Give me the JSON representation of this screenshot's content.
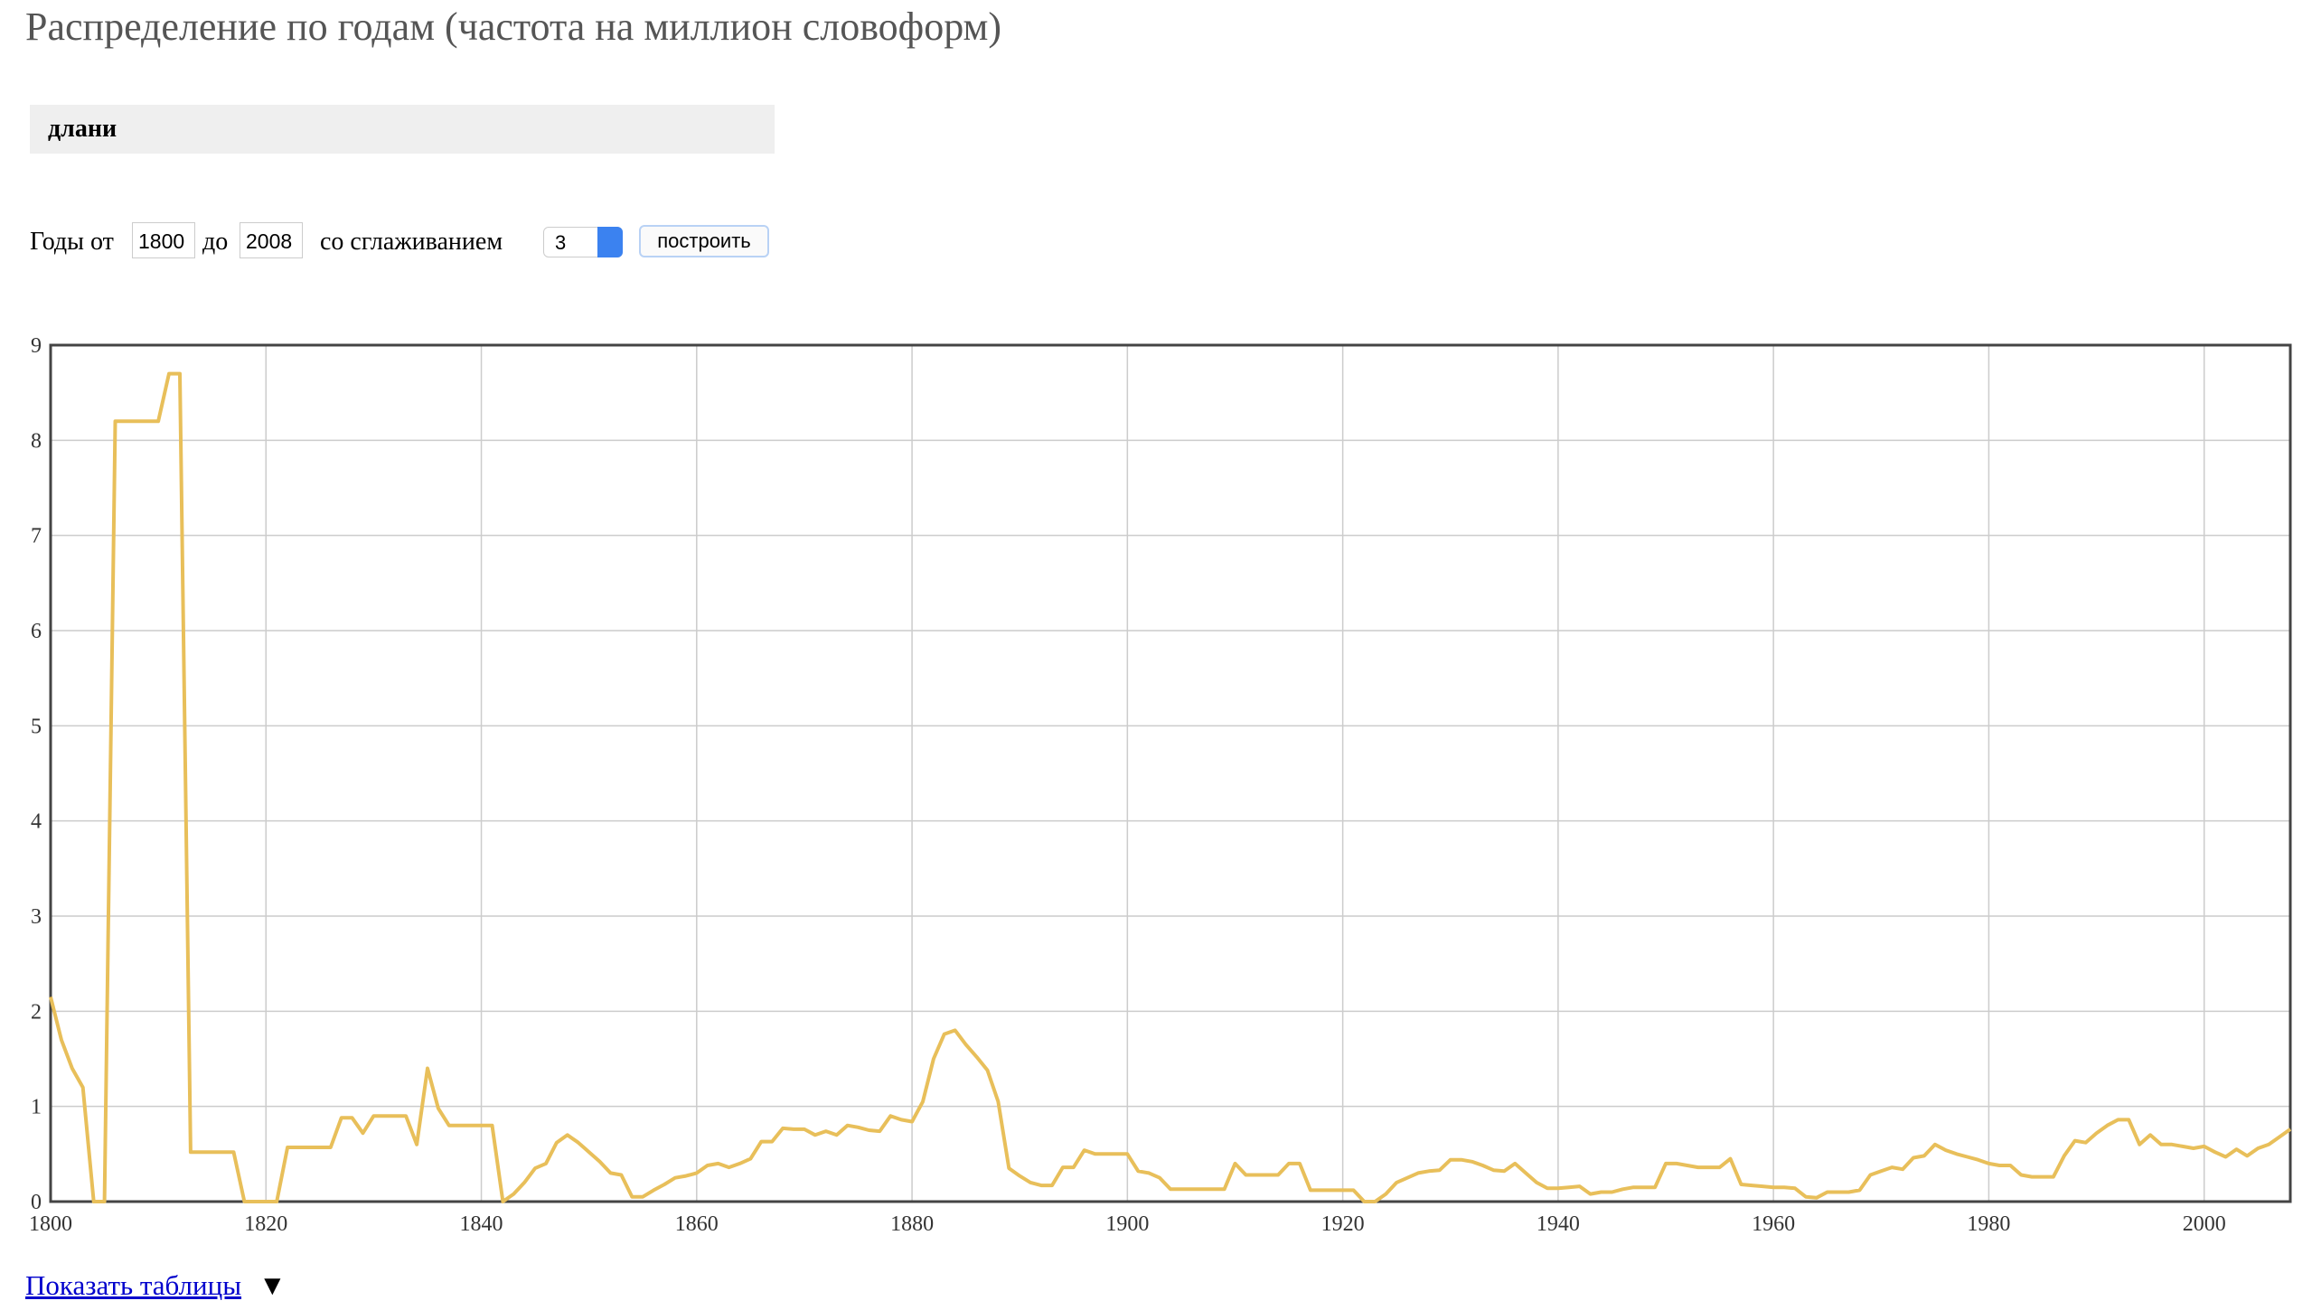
{
  "page_title": "Распределение по годам (частота на миллион словоформ)",
  "query": "длани",
  "form": {
    "years_from_label": "Годы от",
    "year_from": 1800,
    "to_label": "до",
    "year_to": 2008,
    "smoothing_label": "со сглаживанием",
    "smoothing": 3,
    "button": "построить"
  },
  "show_tables": "Показать таблицы",
  "chart_data": {
    "type": "line",
    "x": [
      1800,
      1801,
      1802,
      1803,
      1804,
      1805,
      1806,
      1807,
      1808,
      1809,
      1810,
      1811,
      1812,
      1813,
      1814,
      1815,
      1816,
      1817,
      1818,
      1819,
      1820,
      1821,
      1822,
      1823,
      1824,
      1825,
      1826,
      1827,
      1828,
      1829,
      1830,
      1831,
      1832,
      1833,
      1834,
      1835,
      1836,
      1837,
      1838,
      1839,
      1840,
      1841,
      1842,
      1843,
      1844,
      1845,
      1846,
      1847,
      1848,
      1849,
      1850,
      1851,
      1852,
      1853,
      1854,
      1855,
      1856,
      1857,
      1858,
      1859,
      1860,
      1861,
      1862,
      1863,
      1864,
      1865,
      1866,
      1867,
      1868,
      1869,
      1870,
      1871,
      1872,
      1873,
      1874,
      1875,
      1876,
      1877,
      1878,
      1879,
      1880,
      1881,
      1882,
      1883,
      1884,
      1885,
      1886,
      1887,
      1888,
      1889,
      1890,
      1891,
      1892,
      1893,
      1894,
      1895,
      1896,
      1897,
      1898,
      1899,
      1900,
      1901,
      1902,
      1903,
      1904,
      1905,
      1906,
      1907,
      1908,
      1909,
      1910,
      1911,
      1912,
      1913,
      1914,
      1915,
      1916,
      1917,
      1918,
      1919,
      1920,
      1921,
      1922,
      1923,
      1924,
      1925,
      1926,
      1927,
      1928,
      1929,
      1930,
      1931,
      1932,
      1933,
      1934,
      1935,
      1936,
      1937,
      1938,
      1939,
      1940,
      1941,
      1942,
      1943,
      1944,
      1945,
      1946,
      1947,
      1948,
      1949,
      1950,
      1951,
      1952,
      1953,
      1954,
      1955,
      1956,
      1957,
      1958,
      1959,
      1960,
      1961,
      1962,
      1963,
      1964,
      1965,
      1966,
      1967,
      1968,
      1969,
      1970,
      1971,
      1972,
      1973,
      1974,
      1975,
      1976,
      1977,
      1978,
      1979,
      1980,
      1981,
      1982,
      1983,
      1984,
      1985,
      1986,
      1987,
      1988,
      1989,
      1990,
      1991,
      1992,
      1993,
      1994,
      1995,
      1996,
      1997,
      1998,
      1999,
      2000,
      2001,
      2002,
      2003,
      2004,
      2005,
      2006,
      2007,
      2008
    ],
    "series": [
      {
        "name": "длани",
        "color": "#e8bf5a",
        "values": [
          2.15,
          1.7,
          1.4,
          1.2,
          0,
          0,
          8.2,
          8.2,
          8.2,
          8.2,
          8.2,
          8.7,
          8.7,
          0.52,
          0.52,
          0.52,
          0.52,
          0.52,
          0,
          0,
          0,
          0,
          0.57,
          0.57,
          0.57,
          0.57,
          0.57,
          0.88,
          0.88,
          0.72,
          0.9,
          0.9,
          0.9,
          0.9,
          0.6,
          1.4,
          0.98,
          0.8,
          0.8,
          0.8,
          0.8,
          0.8,
          0,
          0.08,
          0.2,
          0.35,
          0.4,
          0.62,
          0.7,
          0.62,
          0.52,
          0.42,
          0.3,
          0.28,
          0.05,
          0.05,
          0.12,
          0.18,
          0.25,
          0.27,
          0.3,
          0.38,
          0.4,
          0.36,
          0.4,
          0.45,
          0.63,
          0.63,
          0.77,
          0.76,
          0.76,
          0.7,
          0.74,
          0.7,
          0.8,
          0.78,
          0.75,
          0.74,
          0.9,
          0.86,
          0.84,
          1.05,
          1.5,
          1.76,
          1.8,
          1.65,
          1.52,
          1.38,
          1.05,
          0.35,
          0.27,
          0.2,
          0.17,
          0.17,
          0.36,
          0.36,
          0.54,
          0.5,
          0.5,
          0.5,
          0.5,
          0.32,
          0.3,
          0.25,
          0.13,
          0.13,
          0.13,
          0.13,
          0.13,
          0.13,
          0.4,
          0.28,
          0.28,
          0.28,
          0.28,
          0.4,
          0.4,
          0.12,
          0.12,
          0.12,
          0.12,
          0.12,
          0,
          0,
          0.08,
          0.2,
          0.25,
          0.3,
          0.32,
          0.33,
          0.44,
          0.44,
          0.42,
          0.38,
          0.33,
          0.32,
          0.4,
          0.3,
          0.2,
          0.14,
          0.14,
          0.15,
          0.16,
          0.08,
          0.1,
          0.1,
          0.13,
          0.15,
          0.15,
          0.15,
          0.4,
          0.4,
          0.38,
          0.36,
          0.36,
          0.36,
          0.45,
          0.18,
          0.17,
          0.16,
          0.15,
          0.15,
          0.14,
          0.05,
          0.04,
          0.1,
          0.1,
          0.1,
          0.12,
          0.28,
          0.32,
          0.36,
          0.34,
          0.46,
          0.48,
          0.6,
          0.54,
          0.5,
          0.47,
          0.44,
          0.4,
          0.38,
          0.38,
          0.28,
          0.26,
          0.26,
          0.26,
          0.48,
          0.64,
          0.62,
          0.72,
          0.8,
          0.86,
          0.86,
          0.6,
          0.7,
          0.6,
          0.6,
          0.58,
          0.56,
          0.58,
          0.52,
          0.47,
          0.55,
          0.48,
          0.56,
          0.6,
          0.68,
          0.76
        ]
      }
    ],
    "xlim": [
      1800,
      2008
    ],
    "xticks": [
      1800,
      1820,
      1840,
      1860,
      1880,
      1900,
      1920,
      1940,
      1960,
      1980,
      2000
    ],
    "ylim": [
      0,
      9
    ],
    "yticks": [
      0,
      1,
      2,
      3,
      4,
      5,
      6,
      7,
      8,
      9
    ],
    "grid": true
  }
}
